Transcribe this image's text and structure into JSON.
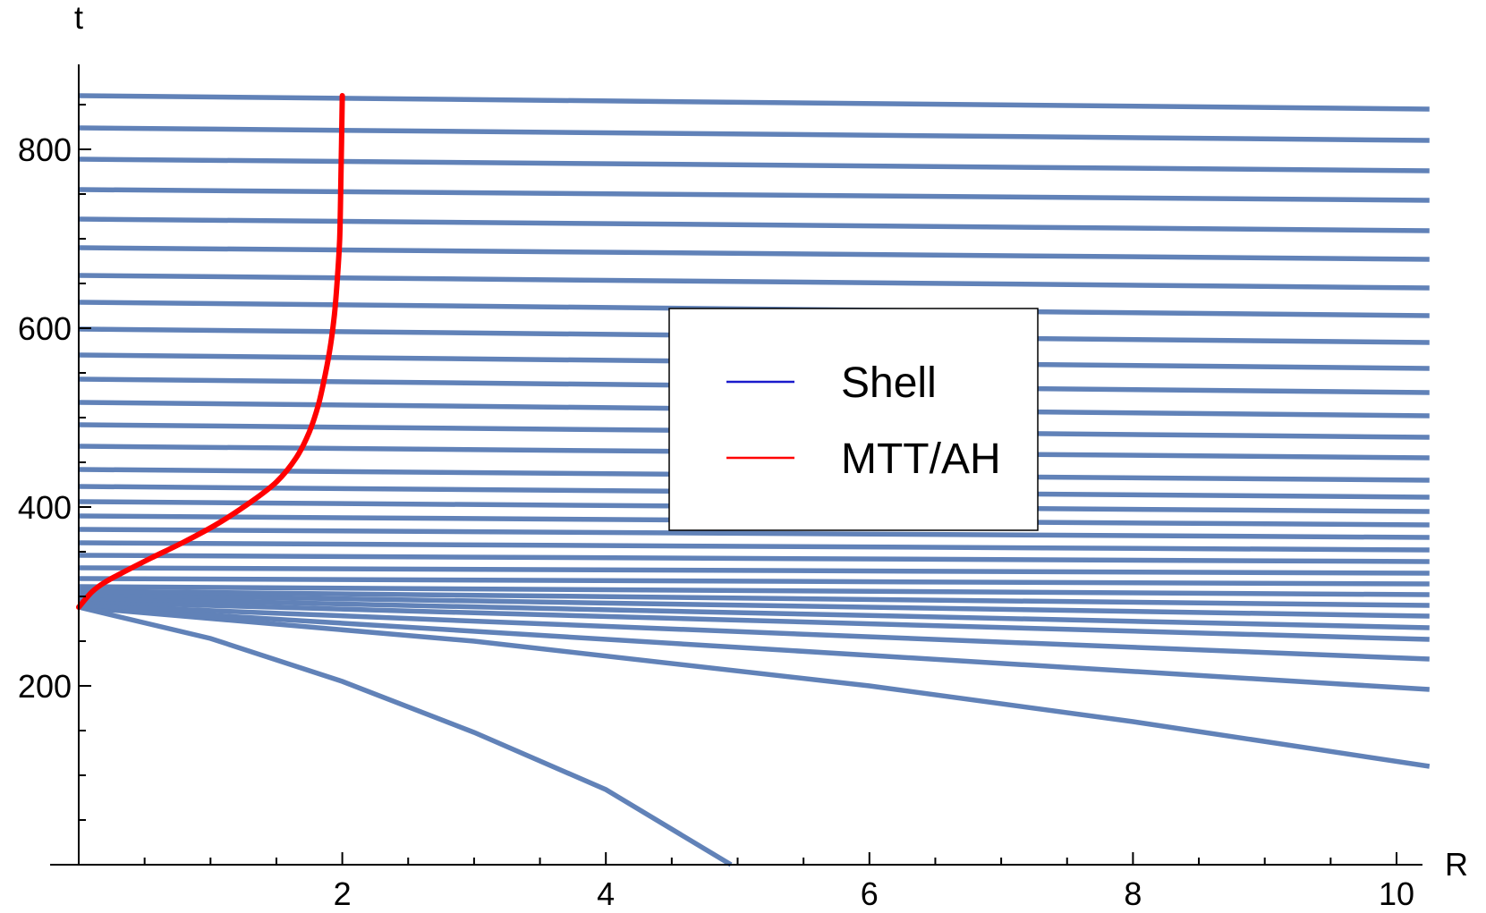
{
  "chart_data": {
    "type": "line",
    "title": "",
    "xlabel": "R",
    "ylabel": "t",
    "xlim": [
      0,
      10.25
    ],
    "ylim": [
      0,
      860
    ],
    "x_ticks": [
      2,
      4,
      6,
      8,
      10
    ],
    "x_minor_step": 0.5,
    "y_ticks": [
      200,
      400,
      600,
      800
    ],
    "y_minor_step": 50,
    "grid": false,
    "legend": {
      "placement": "center-right",
      "entries": [
        {
          "label": "Shell",
          "color": "#1a1acc"
        },
        {
          "label": "MTT/AH",
          "color": "#ff0000"
        }
      ]
    },
    "shell_color": "#6182b8",
    "shells": [
      {
        "points": [
          [
            0,
            288
          ],
          [
            1,
            253
          ],
          [
            2,
            205
          ],
          [
            3,
            148
          ],
          [
            4,
            84
          ],
          [
            4.95,
            0
          ]
        ]
      },
      {
        "points": [
          [
            0,
            288
          ],
          [
            3,
            250
          ],
          [
            6,
            200
          ],
          [
            8,
            160
          ],
          [
            10.25,
            110
          ]
        ]
      },
      {
        "x": [
          0,
          10.25
        ],
        "t": [
          288,
          196
        ]
      },
      {
        "x": [
          0,
          10.25
        ],
        "t": [
          290,
          230
        ]
      },
      {
        "x": [
          0,
          10.25
        ],
        "t": [
          294,
          252
        ]
      },
      {
        "x": [
          0,
          10.25
        ],
        "t": [
          298,
          265
        ]
      },
      {
        "x": [
          0,
          10.25
        ],
        "t": [
          302,
          278
        ]
      },
      {
        "x": [
          0,
          10.25
        ],
        "t": [
          306,
          290
        ]
      },
      {
        "x": [
          0,
          10.25
        ],
        "t": [
          311,
          302
        ]
      },
      {
        "x": [
          0,
          10.25
        ],
        "t": [
          320,
          314
        ]
      },
      {
        "x": [
          0,
          10.25
        ],
        "t": [
          332,
          326
        ]
      },
      {
        "x": [
          0,
          10.25
        ],
        "t": [
          346,
          339
        ]
      },
      {
        "x": [
          0,
          10.25
        ],
        "t": [
          360,
          352
        ]
      },
      {
        "x": [
          0,
          10.25
        ],
        "t": [
          375,
          366
        ]
      },
      {
        "x": [
          0,
          10.25
        ],
        "t": [
          390,
          380
        ]
      },
      {
        "x": [
          0,
          10.25
        ],
        "t": [
          406,
          395
        ]
      },
      {
        "x": [
          0,
          10.25
        ],
        "t": [
          423,
          411
        ]
      },
      {
        "x": [
          0,
          10.25
        ],
        "t": [
          442,
          430
        ]
      },
      {
        "x": [
          0,
          10.25
        ],
        "t": [
          468,
          455
        ]
      },
      {
        "x": [
          0,
          10.25
        ],
        "t": [
          492,
          478
        ]
      },
      {
        "x": [
          0,
          10.25
        ],
        "t": [
          517,
          502
        ]
      },
      {
        "x": [
          0,
          10.25
        ],
        "t": [
          543,
          528
        ]
      },
      {
        "x": [
          0,
          10.25
        ],
        "t": [
          570,
          555
        ]
      },
      {
        "x": [
          0,
          10.25
        ],
        "t": [
          599,
          584
        ]
      },
      {
        "x": [
          0,
          10.25
        ],
        "t": [
          629,
          614
        ]
      },
      {
        "x": [
          0,
          10.25
        ],
        "t": [
          659,
          645
        ]
      },
      {
        "x": [
          0,
          10.25
        ],
        "t": [
          690,
          677
        ]
      },
      {
        "x": [
          0,
          10.25
        ],
        "t": [
          722,
          709
        ]
      },
      {
        "x": [
          0,
          10.25
        ],
        "t": [
          755,
          743
        ]
      },
      {
        "x": [
          0,
          10.25
        ],
        "t": [
          789,
          776
        ]
      },
      {
        "x": [
          0,
          10.25
        ],
        "t": [
          824,
          810
        ]
      },
      {
        "x": [
          0,
          10.25
        ],
        "t": [
          860,
          845
        ]
      }
    ],
    "mtt_color": "#ff0000",
    "mtt_ah": {
      "R": [
        0.0,
        0.1,
        0.2,
        0.35,
        0.55,
        0.8,
        1.05,
        1.3,
        1.5,
        1.65,
        1.75,
        1.82,
        1.87,
        1.91,
        1.94,
        1.96,
        1.98,
        1.99,
        2.0
      ],
      "t": [
        288,
        305,
        316,
        328,
        343,
        361,
        381,
        405,
        428,
        455,
        484,
        515,
        548,
        580,
        615,
        650,
        700,
        770,
        860
      ]
    }
  }
}
